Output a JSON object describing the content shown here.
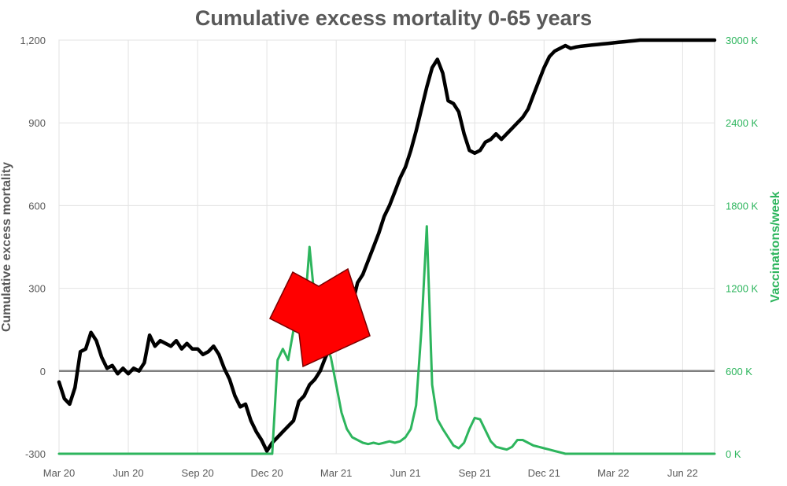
{
  "chart_data": {
    "type": "line",
    "title": "Cumulative excess mortality 0-65 years",
    "ylabel": "Cumulative excess mortality",
    "y2label": "Vaccinations/week",
    "x_tick_labels": [
      "Mar 20",
      "Jun 20",
      "Sep 20",
      "Dec 20",
      "Mar 21",
      "Jun 21",
      "Sep 21",
      "Dec 21",
      "Mar 22",
      "Jun 22"
    ],
    "y_ticks": [
      -300,
      0,
      300,
      600,
      900,
      1200
    ],
    "y_tick_labels": [
      "-300",
      "0",
      "300",
      "600",
      "900",
      "1,200"
    ],
    "y2_ticks": [
      0,
      600000,
      1200000,
      1800000,
      2400000,
      3000000
    ],
    "y2_tick_labels": [
      "0 K",
      "600 K",
      "1200 K",
      "1800 K",
      "2400 K",
      "3000 K"
    ],
    "ylim": [
      -300,
      1200
    ],
    "y2lim": [
      0,
      3000000
    ],
    "x_range_weeks": [
      0,
      123
    ],
    "grid": true,
    "series": [
      {
        "axis": "left",
        "color": "#000000",
        "x": [
          0,
          1,
          2,
          3,
          4,
          5,
          6,
          7,
          8,
          9,
          10,
          11,
          12,
          13,
          14,
          15,
          16,
          17,
          18,
          19,
          20,
          21,
          22,
          23,
          24,
          25,
          26,
          27,
          28,
          29,
          30,
          31,
          32,
          33,
          34,
          35,
          36,
          37,
          38,
          39,
          40,
          41,
          42,
          43,
          44,
          45,
          46,
          47,
          48,
          49,
          50,
          51,
          52,
          53,
          54,
          55,
          56,
          57,
          58,
          59,
          60,
          61,
          62,
          63,
          64,
          65,
          66,
          67,
          68,
          69,
          70,
          71,
          72,
          73,
          74,
          75,
          76,
          77,
          78,
          79,
          80,
          81,
          82,
          83,
          84,
          85,
          86,
          87,
          88,
          89,
          90,
          91,
          92,
          93,
          94,
          95,
          96,
          97,
          98,
          99,
          100,
          101,
          102,
          103,
          104,
          105,
          106,
          107,
          108,
          109,
          110,
          111,
          112,
          113,
          114,
          115,
          116,
          117,
          118,
          119,
          120,
          121,
          122,
          123
        ],
        "values": [
          -40,
          -100,
          -120,
          -60,
          70,
          80,
          140,
          110,
          50,
          10,
          20,
          -10,
          10,
          -10,
          10,
          0,
          30,
          130,
          90,
          110,
          100,
          90,
          110,
          80,
          100,
          80,
          80,
          60,
          70,
          90,
          60,
          10,
          -30,
          -90,
          -130,
          -120,
          -180,
          -220,
          -250,
          -290,
          -260,
          -240,
          -220,
          -200,
          -180,
          -110,
          -90,
          -50,
          -30,
          0,
          50,
          90,
          110,
          140,
          180,
          240,
          320,
          350,
          400,
          450,
          500,
          560,
          600,
          650,
          700,
          740,
          800,
          870,
          950,
          1030,
          1100,
          1130,
          1080,
          980,
          970,
          940,
          860,
          800,
          790,
          800,
          830,
          840,
          860,
          840,
          860,
          880,
          900,
          920,
          950,
          1000,
          1050,
          1100,
          1140,
          1160,
          1170,
          1180,
          1170,
          1175,
          1178,
          1180,
          1182,
          1184,
          1186,
          1188,
          1190,
          1192,
          1194,
          1196,
          1198,
          1200,
          1200,
          1200,
          1200,
          1200,
          1200,
          1200,
          1200,
          1200,
          1200,
          1200,
          1200,
          1200,
          1200,
          1200
        ]
      },
      {
        "axis": "right",
        "color": "#2db55d",
        "x": [
          0,
          40,
          41,
          42,
          43,
          44,
          45,
          46,
          47,
          48,
          49,
          50,
          51,
          52,
          53,
          54,
          55,
          56,
          57,
          58,
          59,
          60,
          61,
          62,
          63,
          64,
          65,
          66,
          67,
          68,
          69,
          70,
          71,
          72,
          73,
          74,
          75,
          76,
          77,
          78,
          79,
          80,
          81,
          82,
          83,
          84,
          85,
          86,
          87,
          88,
          89,
          90,
          91,
          92,
          93,
          94,
          95,
          96,
          97,
          98,
          99,
          100,
          101,
          102,
          103,
          104,
          105,
          106,
          107,
          108,
          109,
          110,
          111,
          112,
          113,
          114,
          115,
          116,
          117,
          118,
          119,
          120,
          121,
          122,
          123
        ],
        "values": [
          0,
          0,
          680000,
          760000,
          680000,
          900000,
          1050000,
          1000000,
          1500000,
          1100000,
          1150000,
          800000,
          700000,
          500000,
          300000,
          180000,
          120000,
          100000,
          80000,
          70000,
          80000,
          70000,
          80000,
          90000,
          80000,
          90000,
          120000,
          180000,
          350000,
          900000,
          1650000,
          500000,
          250000,
          180000,
          120000,
          60000,
          40000,
          80000,
          180000,
          260000,
          250000,
          170000,
          90000,
          50000,
          40000,
          30000,
          50000,
          100000,
          100000,
          80000,
          60000,
          50000,
          40000,
          30000,
          20000,
          10000,
          0,
          0,
          0,
          0,
          0,
          0,
          0,
          0,
          0,
          0,
          0,
          0,
          0,
          0,
          0,
          0,
          0,
          0,
          0,
          0,
          0,
          0,
          0,
          0,
          0,
          0,
          0,
          0,
          0
        ]
      }
    ]
  }
}
